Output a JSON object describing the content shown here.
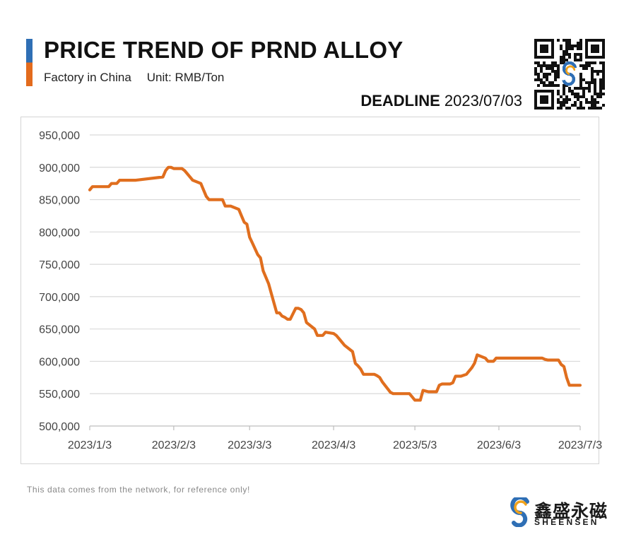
{
  "header": {
    "title": "PRICE TREND OF PRND ALLOY",
    "subtitle_source": "Factory in China",
    "subtitle_unit": "Unit: RMB/Ton",
    "deadline_label": "DEADLINE",
    "deadline_date": "2023/07/03"
  },
  "footer": {
    "note": "This data comes from the network, for reference only!",
    "brand_cn": "鑫盛永磁",
    "brand_en": "SHEENSEN"
  },
  "colors": {
    "line": "#e06e1e",
    "accent_blue": "#2f6fb5",
    "accent_orange": "#e36b1d",
    "grid": "#d9d9d9"
  },
  "icons": {
    "qr": "qr-code-icon",
    "logo": "sheensen-logo-icon"
  },
  "chart_data": {
    "type": "line",
    "title": "PRICE TREND OF PRND ALLOY",
    "xlabel": "",
    "ylabel": "",
    "ylim": [
      500000,
      950000
    ],
    "yticks": [
      500000,
      550000,
      600000,
      650000,
      700000,
      750000,
      800000,
      850000,
      900000,
      950000
    ],
    "ytick_labels": [
      "500,000",
      "550,000",
      "600,000",
      "650,000",
      "700,000",
      "750,000",
      "800,000",
      "850,000",
      "900,000",
      "950,000"
    ],
    "xlim": [
      "2023-01-03",
      "2023-07-03"
    ],
    "xtick_labels": [
      "2023/1/3",
      "2023/2/3",
      "2023/3/3",
      "2023/4/3",
      "2023/5/3",
      "2023/6/3",
      "2023/7/3"
    ],
    "grid": true,
    "series": [
      {
        "x": [
          "2023-01-03",
          "2023-01-04",
          "2023-01-05",
          "2023-01-10",
          "2023-01-11",
          "2023-01-13",
          "2023-01-14",
          "2023-01-20",
          "2023-01-30",
          "2023-01-31",
          "2023-02-01",
          "2023-02-02",
          "2023-02-03",
          "2023-02-06",
          "2023-02-07",
          "2023-02-08",
          "2023-02-10",
          "2023-02-13",
          "2023-02-14",
          "2023-02-15",
          "2023-02-16",
          "2023-02-21",
          "2023-02-22",
          "2023-02-24",
          "2023-02-27",
          "2023-02-28",
          "2023-03-01",
          "2023-03-02",
          "2023-03-03",
          "2023-03-04",
          "2023-03-06",
          "2023-03-07",
          "2023-03-08",
          "2023-03-10",
          "2023-03-11",
          "2023-03-13",
          "2023-03-14",
          "2023-03-15",
          "2023-03-16",
          "2023-03-17",
          "2023-03-18",
          "2023-03-20",
          "2023-03-21",
          "2023-03-22",
          "2023-03-23",
          "2023-03-24",
          "2023-03-27",
          "2023-03-28",
          "2023-03-29",
          "2023-03-30",
          "2023-03-31",
          "2023-04-03",
          "2023-04-04",
          "2023-04-05",
          "2023-04-06",
          "2023-04-07",
          "2023-04-10",
          "2023-04-11",
          "2023-04-12",
          "2023-04-13",
          "2023-04-14",
          "2023-04-17",
          "2023-04-18",
          "2023-04-19",
          "2023-04-20",
          "2023-04-21",
          "2023-04-24",
          "2023-04-25",
          "2023-04-26",
          "2023-04-27",
          "2023-04-28",
          "2023-05-01",
          "2023-05-02",
          "2023-05-03",
          "2023-05-04",
          "2023-05-05",
          "2023-05-06",
          "2023-05-08",
          "2023-05-09",
          "2023-05-10",
          "2023-05-11",
          "2023-05-12",
          "2023-05-13",
          "2023-05-15",
          "2023-05-16",
          "2023-05-17",
          "2023-05-18",
          "2023-05-19",
          "2023-05-20",
          "2023-05-22",
          "2023-05-23",
          "2023-05-24",
          "2023-05-25",
          "2023-05-26",
          "2023-05-29",
          "2023-05-30",
          "2023-05-31",
          "2023-06-01",
          "2023-06-02",
          "2023-06-05",
          "2023-06-06",
          "2023-06-07",
          "2023-06-08",
          "2023-06-09",
          "2023-06-12",
          "2023-06-13",
          "2023-06-14",
          "2023-06-15",
          "2023-06-16",
          "2023-06-19",
          "2023-06-20",
          "2023-06-21",
          "2023-06-25",
          "2023-06-26",
          "2023-06-27",
          "2023-06-28",
          "2023-06-29",
          "2023-06-30",
          "2023-07-03"
        ],
        "values": [
          865000,
          870000,
          870000,
          870000,
          875000,
          875000,
          880000,
          880000,
          885000,
          895000,
          900000,
          900000,
          898000,
          898000,
          895000,
          890000,
          880000,
          875000,
          865000,
          855000,
          850000,
          850000,
          840000,
          840000,
          835000,
          825000,
          815000,
          812000,
          792000,
          783000,
          765000,
          760000,
          740000,
          720000,
          705000,
          675000,
          675000,
          670000,
          668000,
          665000,
          665000,
          682000,
          682000,
          680000,
          675000,
          660000,
          650000,
          640000,
          640000,
          640000,
          645000,
          643000,
          640000,
          635000,
          630000,
          625000,
          615000,
          597000,
          593000,
          588000,
          580000,
          580000,
          580000,
          578000,
          575000,
          568000,
          552000,
          550000,
          550000,
          550000,
          550000,
          550000,
          545000,
          540000,
          540000,
          540000,
          555000,
          553000,
          553000,
          553000,
          553000,
          563000,
          565000,
          565000,
          565000,
          567000,
          577000,
          577000,
          577000,
          580000,
          585000,
          590000,
          597000,
          610000,
          605000,
          600000,
          600000,
          600000,
          605000,
          605000,
          605000,
          605000,
          605000,
          605000,
          605000,
          605000,
          605000,
          605000,
          605000,
          605000,
          603000,
          602000,
          602000,
          595000,
          592000,
          575000,
          563000,
          563000,
          563000
        ]
      }
    ]
  }
}
